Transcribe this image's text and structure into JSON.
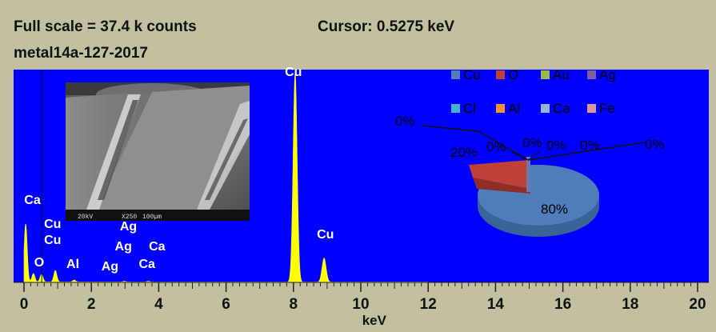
{
  "header": {
    "full_scale": "Full scale = 37.4 k counts",
    "cursor": "Cursor: 0.5275 keV",
    "sample": "metal14a-127-2017"
  },
  "colors": {
    "background": "#c3c0a2",
    "plot_background": "#0000ff",
    "spectrum": "#ffff00"
  },
  "inset_image": {
    "caption_left": "20kV",
    "caption_mid": "X250",
    "caption_right": "100µm"
  },
  "chart_data": [
    {
      "type": "area",
      "xlabel": "keV",
      "ylabel": "",
      "xlim": [
        0,
        20.2
      ],
      "ylim": [
        0,
        37400
      ],
      "xticks": [
        0,
        2,
        4,
        6,
        8,
        10,
        12,
        14,
        16,
        18,
        20
      ],
      "peaks": [
        {
          "x": 0.05,
          "y": 10400
        },
        {
          "x": 0.28,
          "y": 1500
        },
        {
          "x": 0.52,
          "y": 1350
        },
        {
          "x": 0.93,
          "y": 2050
        },
        {
          "x": 1.49,
          "y": 350
        },
        {
          "x": 2.98,
          "y": 120
        },
        {
          "x": 3.69,
          "y": 120
        },
        {
          "x": 8.05,
          "y": 37400
        },
        {
          "x": 8.91,
          "y": 4300
        }
      ],
      "peak_labels": [
        {
          "text": "Ca",
          "x": 0.25,
          "level": 98
        },
        {
          "text": "Cu",
          "x": 0.85,
          "level": 68
        },
        {
          "text": "Cu",
          "x": 0.85,
          "level": 48
        },
        {
          "text": "O",
          "x": 0.45,
          "level": 20
        },
        {
          "text": "Al",
          "x": 1.45,
          "level": 18
        },
        {
          "text": "Ag",
          "x": 3.1,
          "level": 65
        },
        {
          "text": "Ag",
          "x": 2.95,
          "level": 40
        },
        {
          "text": "Ag",
          "x": 2.55,
          "level": 15
        },
        {
          "text": "Ca",
          "x": 3.95,
          "level": 40
        },
        {
          "text": "Ca",
          "x": 3.65,
          "level": 18
        },
        {
          "text": "Cu",
          "x": 8.0,
          "level": 258
        },
        {
          "text": "Cu",
          "x": 8.95,
          "level": 55
        }
      ]
    },
    {
      "type": "pie",
      "categories": [
        "Cu",
        "O",
        "Au",
        "Ag",
        "Cl",
        "Al",
        "Ca",
        "Fe"
      ],
      "values": [
        80,
        20,
        0,
        0,
        0,
        0,
        0,
        0
      ],
      "labels": [
        "80%",
        "20%",
        "0%",
        "0%",
        "0%",
        "0%",
        "0%",
        "0%"
      ],
      "colors": [
        "#4e7db9",
        "#c0413a",
        "#98b94c",
        "#7b63a0",
        "#46b0c9",
        "#f39433",
        "#97b4dd",
        "#dc9898"
      ]
    }
  ]
}
